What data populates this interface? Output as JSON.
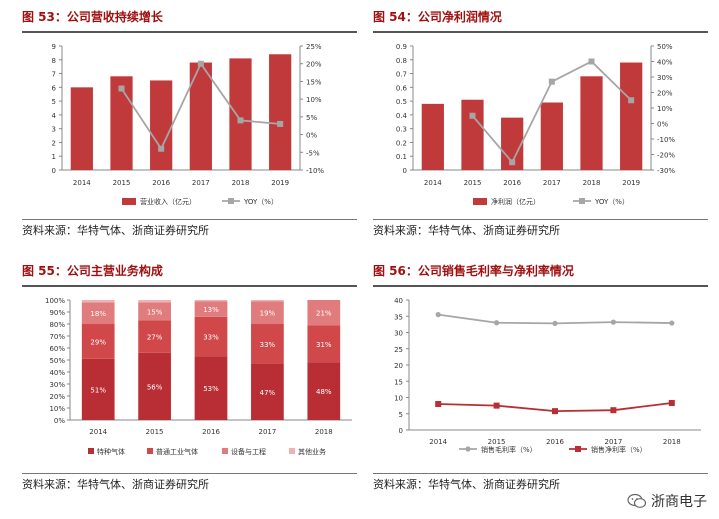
{
  "colors": {
    "bar": "#c0393b",
    "line": "#a6a6a6",
    "title": "#a01010",
    "seg1": "#b92e34",
    "seg2": "#d0484a",
    "seg3": "#e07c7d",
    "seg4": "#efb1b2"
  },
  "source_text": "资料来源：华特气体、浙商证券研究所",
  "watermark": "浙商电子",
  "chart_data": [
    {
      "title": "图 53：公司营收持续增长",
      "type": "bar",
      "categories": [
        "2014",
        "2015",
        "2016",
        "2017",
        "2018",
        "2019"
      ],
      "left_ticks": [
        "0",
        "1",
        "2",
        "3",
        "4",
        "5",
        "6",
        "7",
        "8",
        "9"
      ],
      "right_ticks": [
        "25%",
        "20%",
        "15%",
        "10%",
        "5%",
        "0%",
        "-5%",
        "-10%"
      ],
      "ylim": [
        0,
        9
      ],
      "y2lim": [
        -10,
        25
      ],
      "series": [
        {
          "name": "营业收入（亿元）",
          "type": "bar",
          "values": [
            6.0,
            6.8,
            6.5,
            7.8,
            8.1,
            8.4
          ]
        },
        {
          "name": "YOY（%）",
          "type": "line",
          "axis": "right",
          "values": [
            null,
            13,
            -4,
            20,
            4,
            3
          ]
        }
      ]
    },
    {
      "title": "图 54：公司净利润情况",
      "type": "bar",
      "categories": [
        "2014",
        "2015",
        "2016",
        "2017",
        "2018",
        "2019"
      ],
      "left_ticks": [
        "0",
        "0.1",
        "0.2",
        "0.3",
        "0.4",
        "0.5",
        "0.6",
        "0.7",
        "0.8",
        "0.9"
      ],
      "right_ticks": [
        "50%",
        "40%",
        "30%",
        "20%",
        "10%",
        "0%",
        "-10%",
        "-20%",
        "-30%"
      ],
      "ylim": [
        0,
        0.9
      ],
      "y2lim": [
        -30,
        50
      ],
      "series": [
        {
          "name": "净利润（亿元）",
          "type": "bar",
          "values": [
            0.48,
            0.51,
            0.38,
            0.49,
            0.68,
            0.78
          ]
        },
        {
          "name": "YOY（%）",
          "type": "line",
          "axis": "right",
          "values": [
            null,
            5,
            -25,
            27,
            40,
            15
          ]
        }
      ]
    },
    {
      "title": "图 55：公司主营业务构成",
      "type": "bar",
      "stacked": true,
      "categories": [
        "2014",
        "2015",
        "2016",
        "2017",
        "2018"
      ],
      "left_ticks": [
        "0%",
        "10%",
        "20%",
        "30%",
        "40%",
        "50%",
        "60%",
        "70%",
        "80%",
        "90%",
        "100%"
      ],
      "ylim": [
        0,
        100
      ],
      "series": [
        {
          "name": "特种气体",
          "values": [
            51,
            56,
            53,
            47,
            48
          ],
          "labels": [
            "51%",
            "56%",
            "53%",
            "47%",
            "48%"
          ]
        },
        {
          "name": "普通工业气体",
          "values": [
            29,
            27,
            33,
            33,
            31
          ],
          "labels": [
            "29%",
            "27%",
            "33%",
            "33%",
            "31%"
          ]
        },
        {
          "name": "设备与工程",
          "values": [
            18,
            15,
            13,
            19,
            21
          ],
          "labels": [
            "18%",
            "15%",
            "13%",
            "19%",
            "21%"
          ]
        },
        {
          "name": "其他业务",
          "values": [
            2,
            2,
            1,
            1,
            0
          ],
          "labels": [
            "",
            "",
            "",
            "",
            ""
          ]
        }
      ]
    },
    {
      "title": "图 56：公司销售毛利率与净利率情况",
      "type": "line",
      "categories": [
        "2014",
        "2015",
        "2016",
        "2017",
        "2018"
      ],
      "left_ticks": [
        "0",
        "5",
        "10",
        "15",
        "20",
        "25",
        "30",
        "35",
        "40"
      ],
      "ylim": [
        0,
        40
      ],
      "series": [
        {
          "name": "销售毛利率（%）",
          "values": [
            35.5,
            33,
            32.8,
            33.2,
            32.9
          ]
        },
        {
          "name": "销售净利率（%）",
          "values": [
            8,
            7.5,
            5.8,
            6.1,
            8.3
          ]
        }
      ]
    }
  ]
}
